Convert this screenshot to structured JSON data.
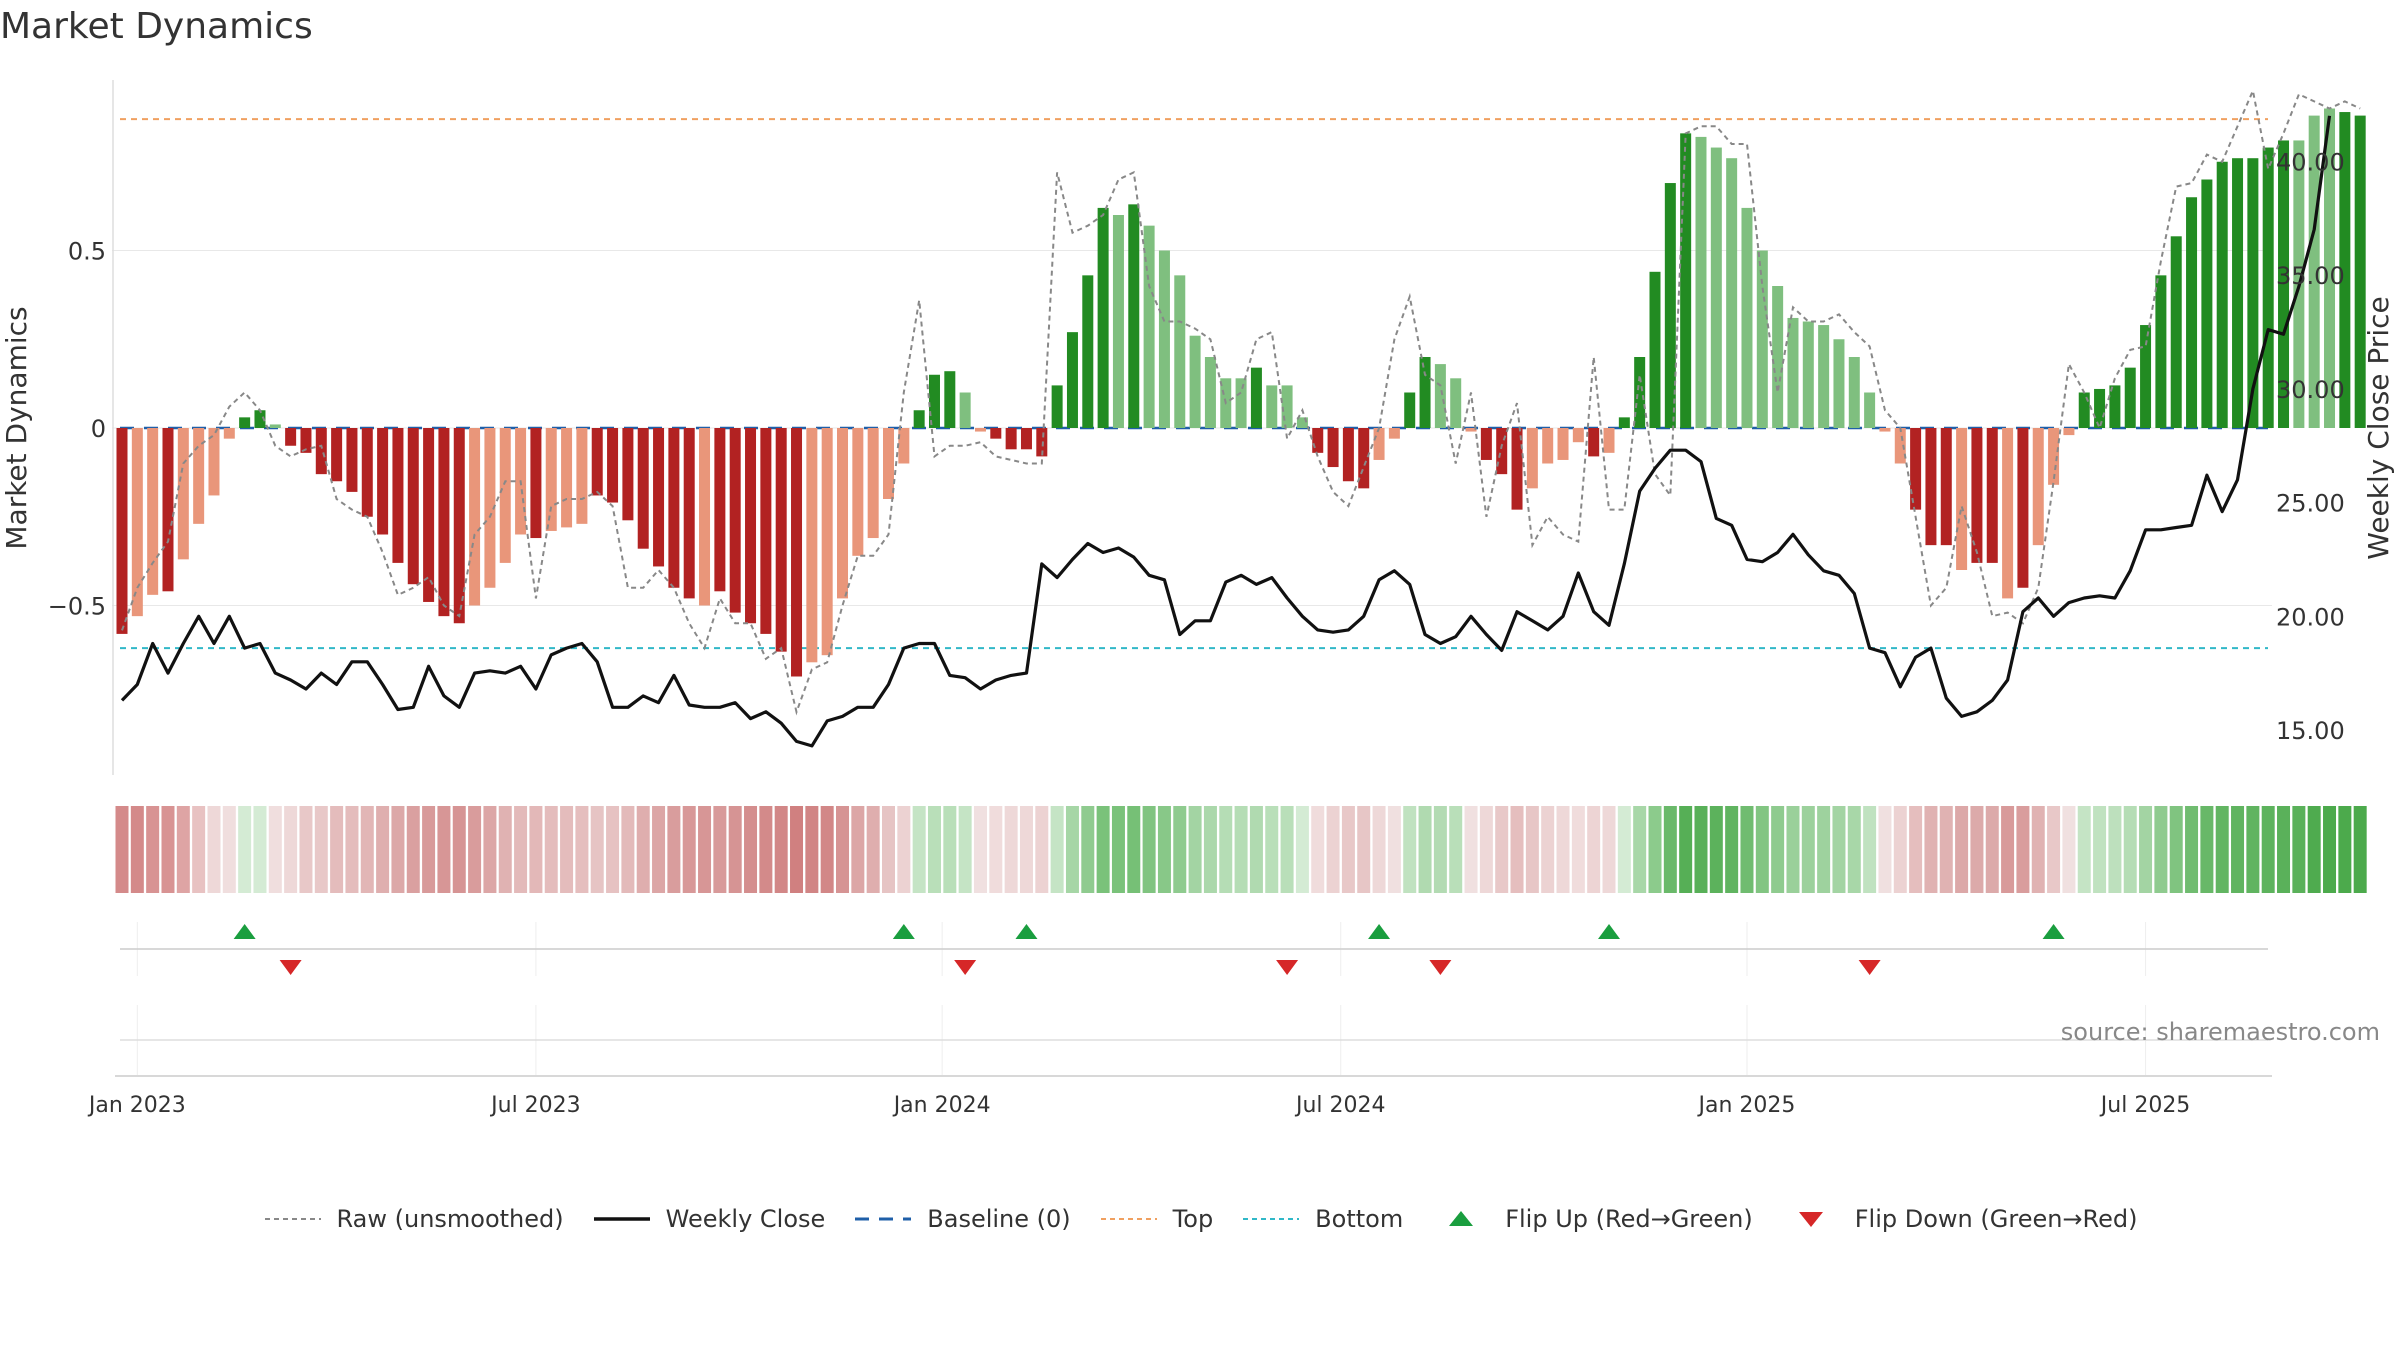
{
  "page": {
    "title": "Market Dynamics",
    "source": "source: sharemaestro.com"
  },
  "chart_data": {
    "type": "bar",
    "title": "Market Dynamics",
    "ylabel": "Market Dynamics",
    "y2label": "Weekly Close Price",
    "ylim": [
      -0.97,
      0.97
    ],
    "y2lim": [
      12.0,
      44.0
    ],
    "yticks": [
      -0.5,
      0,
      0.5
    ],
    "yticklabels": [
      "−0.5",
      "0",
      "0.5"
    ],
    "y2ticks": [
      15,
      20,
      25,
      30,
      35,
      40
    ],
    "y2ticklabels": [
      "15.00",
      "20.00",
      "25.00",
      "30.00",
      "35.00",
      "40.00"
    ],
    "xticks": [
      {
        "label": "Jan 2023",
        "week": 1
      },
      {
        "label": "Jul 2023",
        "week": 27
      },
      {
        "label": "Jan 2024",
        "week": 53.5
      },
      {
        "label": "Jul 2024",
        "week": 79.5
      },
      {
        "label": "Jan 2025",
        "week": 106
      },
      {
        "label": "Jul 2025",
        "week": 132
      }
    ],
    "reference_lines": {
      "top": 0.87,
      "bottom": -0.62,
      "baseline": 0
    },
    "grid": true,
    "legend_position": "bottom-center",
    "colors": {
      "red_strong": "#b22222",
      "red_light": "#e9967a",
      "green_strong": "#228b22",
      "green_light": "#7fbf7f",
      "raw": "#888888",
      "close": "#111111",
      "baseline": "#1f5fa8",
      "top": "#f0a060",
      "bottom": "#30b8c8",
      "flip_up": "#1a9e3f",
      "flip_down": "#d62728"
    },
    "bars": [
      -0.58,
      -0.53,
      -0.47,
      -0.46,
      -0.37,
      -0.27,
      -0.19,
      -0.03,
      0.03,
      0.05,
      0.01,
      -0.05,
      -0.07,
      -0.13,
      -0.15,
      -0.18,
      -0.25,
      -0.3,
      -0.38,
      -0.44,
      -0.49,
      -0.53,
      -0.55,
      -0.5,
      -0.45,
      -0.38,
      -0.3,
      -0.31,
      -0.29,
      -0.28,
      -0.27,
      -0.19,
      -0.21,
      -0.26,
      -0.34,
      -0.39,
      -0.45,
      -0.48,
      -0.5,
      -0.46,
      -0.52,
      -0.55,
      -0.58,
      -0.63,
      -0.7,
      -0.66,
      -0.64,
      -0.48,
      -0.36,
      -0.31,
      -0.2,
      -0.1,
      0.05,
      0.15,
      0.16,
      0.1,
      -0.01,
      -0.03,
      -0.06,
      -0.06,
      -0.08,
      0.12,
      0.27,
      0.43,
      0.62,
      0.6,
      0.63,
      0.57,
      0.5,
      0.43,
      0.26,
      0.2,
      0.14,
      0.14,
      0.17,
      0.12,
      0.12,
      0.03,
      -0.07,
      -0.11,
      -0.15,
      -0.17,
      -0.09,
      -0.03,
      0.1,
      0.2,
      0.18,
      0.14,
      -0.01,
      -0.09,
      -0.13,
      -0.23,
      -0.17,
      -0.1,
      -0.09,
      -0.04,
      -0.08,
      -0.07,
      0.03,
      0.2,
      0.44,
      0.69,
      0.83,
      0.82,
      0.79,
      0.76,
      0.62,
      0.5,
      0.4,
      0.31,
      0.3,
      0.29,
      0.25,
      0.2,
      0.1,
      -0.01,
      -0.1,
      -0.23,
      -0.33,
      -0.33,
      -0.4,
      -0.38,
      -0.38,
      -0.48,
      -0.45,
      -0.33,
      -0.16,
      -0.02,
      0.1,
      0.11,
      0.12,
      0.17,
      0.29,
      0.43,
      0.54,
      0.65,
      0.7,
      0.75,
      0.76,
      0.76,
      0.79,
      0.81,
      0.81,
      0.88,
      0.9,
      0.89,
      0.88
    ],
    "bar_shades": [
      "s",
      "l",
      "l",
      "s",
      "l",
      "l",
      "l",
      "l",
      "s",
      "s",
      "l",
      "s",
      "s",
      "s",
      "s",
      "s",
      "s",
      "s",
      "s",
      "s",
      "s",
      "s",
      "s",
      "l",
      "l",
      "l",
      "l",
      "s",
      "l",
      "l",
      "l",
      "s",
      "s",
      "s",
      "s",
      "s",
      "s",
      "s",
      "l",
      "s",
      "s",
      "s",
      "s",
      "s",
      "s",
      "l",
      "l",
      "l",
      "l",
      "l",
      "l",
      "l",
      "s",
      "s",
      "s",
      "l",
      "l",
      "s",
      "s",
      "s",
      "s",
      "s",
      "s",
      "s",
      "s",
      "l",
      "s",
      "l",
      "l",
      "l",
      "l",
      "l",
      "l",
      "l",
      "s",
      "l",
      "l",
      "l",
      "s",
      "s",
      "s",
      "s",
      "l",
      "l",
      "s",
      "s",
      "l",
      "l",
      "l",
      "s",
      "s",
      "s",
      "l",
      "l",
      "l",
      "l",
      "s",
      "l",
      "s",
      "s",
      "s",
      "s",
      "s",
      "l",
      "l",
      "l",
      "l",
      "l",
      "l",
      "l",
      "l",
      "l",
      "l",
      "l",
      "l",
      "l",
      "l",
      "s",
      "s",
      "s",
      "l",
      "s",
      "s",
      "l",
      "s",
      "l",
      "l",
      "l",
      "s",
      "s",
      "s",
      "s",
      "s",
      "s",
      "s",
      "s",
      "s",
      "s",
      "s",
      "s",
      "s",
      "s",
      "l",
      "l",
      "l"
    ],
    "raw": [
      -0.57,
      -0.45,
      -0.38,
      -0.32,
      -0.1,
      -0.05,
      -0.02,
      0.06,
      0.1,
      0.05,
      -0.05,
      -0.08,
      -0.06,
      -0.05,
      -0.2,
      -0.23,
      -0.25,
      -0.35,
      -0.47,
      -0.45,
      -0.42,
      -0.5,
      -0.53,
      -0.3,
      -0.25,
      -0.15,
      -0.15,
      -0.48,
      -0.22,
      -0.2,
      -0.2,
      -0.18,
      -0.22,
      -0.45,
      -0.45,
      -0.4,
      -0.45,
      -0.55,
      -0.62,
      -0.48,
      -0.55,
      -0.55,
      -0.65,
      -0.62,
      -0.8,
      -0.68,
      -0.66,
      -0.5,
      -0.36,
      -0.36,
      -0.3,
      0.1,
      0.36,
      -0.08,
      -0.05,
      -0.05,
      -0.04,
      -0.08,
      -0.09,
      -0.1,
      -0.1,
      0.72,
      0.55,
      0.57,
      0.6,
      0.7,
      0.72,
      0.4,
      0.3,
      0.3,
      0.28,
      0.25,
      0.07,
      0.1,
      0.25,
      0.27,
      -0.03,
      0.05,
      -0.08,
      -0.18,
      -0.22,
      -0.11,
      0.0,
      0.25,
      0.37,
      0.15,
      0.12,
      -0.1,
      0.1,
      -0.25,
      -0.05,
      0.07,
      -0.33,
      -0.25,
      -0.3,
      -0.32,
      0.2,
      -0.23,
      -0.23,
      0.15,
      -0.13,
      -0.19,
      0.83,
      0.85,
      0.85,
      0.8,
      0.8,
      0.4,
      0.1,
      0.34,
      0.3,
      0.3,
      0.32,
      0.27,
      0.23,
      0.05,
      0.0,
      -0.25,
      -0.5,
      -0.45,
      -0.22,
      -0.35,
      -0.53,
      -0.52,
      -0.55,
      -0.45,
      -0.15,
      0.18,
      0.1,
      0.0,
      0.14,
      0.22,
      0.23,
      0.47,
      0.68,
      0.69,
      0.77,
      0.75,
      0.85,
      0.95,
      0.73,
      0.83,
      0.94,
      0.92,
      0.9,
      0.92,
      0.9
    ],
    "close": [
      16.3,
      17.0,
      18.8,
      17.5,
      18.8,
      20.0,
      18.8,
      20.0,
      18.6,
      18.8,
      17.5,
      17.2,
      16.8,
      17.5,
      17.0,
      18.0,
      18.0,
      17.0,
      15.9,
      16.0,
      17.8,
      16.5,
      16.0,
      17.5,
      17.6,
      17.5,
      17.8,
      16.8,
      18.3,
      18.6,
      18.8,
      18.0,
      16.0,
      16.0,
      16.5,
      16.2,
      17.4,
      16.1,
      16.0,
      16.0,
      16.2,
      15.5,
      15.8,
      15.3,
      14.5,
      14.3,
      15.4,
      15.6,
      16.0,
      16.0,
      17.0,
      18.6,
      18.8,
      18.8,
      17.4,
      17.3,
      16.8,
      17.2,
      17.4,
      17.5,
      22.3,
      21.7,
      22.5,
      23.2,
      22.8,
      23.0,
      22.6,
      21.8,
      21.6,
      19.2,
      19.8,
      19.8,
      21.5,
      21.8,
      21.4,
      21.7,
      20.8,
      20.0,
      19.4,
      19.3,
      19.4,
      20.0,
      21.6,
      22.0,
      21.4,
      19.2,
      18.8,
      19.1,
      20.0,
      19.2,
      18.5,
      20.2,
      19.8,
      19.4,
      20.0,
      21.9,
      20.2,
      19.6,
      22.3,
      25.5,
      26.5,
      27.3,
      27.3,
      26.8,
      24.3,
      24.0,
      22.5,
      22.4,
      22.8,
      23.6,
      22.7,
      22.0,
      21.8,
      21.0,
      18.6,
      18.4,
      16.9,
      18.2,
      18.6,
      16.4,
      15.6,
      15.8,
      16.3,
      17.2,
      20.2,
      20.8,
      20.0,
      20.6,
      20.8,
      20.9,
      20.8,
      22.0,
      23.8,
      23.8,
      23.9,
      24.0,
      26.2,
      24.6,
      26.0,
      30.0,
      32.6,
      32.4,
      34.5,
      37.0,
      42.0
    ]
  },
  "strip": {
    "colors": [
      "#d48a8a",
      "#d48a8a",
      "#d89393",
      "#d89393",
      "#dea4a4",
      "#e8c2c2",
      "#eed8d8",
      "#f0dede",
      "#d4ebd4",
      "#d4ebd4",
      "#f0dede",
      "#eed8d8",
      "#e8c8c8",
      "#e8c8c8",
      "#e4bcbc",
      "#e4bcbc",
      "#e2b6b6",
      "#dfafaf",
      "#dca8a8",
      "#daa0a0",
      "#d89a9a",
      "#d79696",
      "#d69494",
      "#d99c9c",
      "#dca6a6",
      "#e0b2b2",
      "#e3baba",
      "#e3b8b8",
      "#e4bcbc",
      "#e4bcbc",
      "#e5bebe",
      "#e6c4c4",
      "#e6c2c2",
      "#e3baba",
      "#dfaeae",
      "#dca6a6",
      "#d99d9d",
      "#d89898",
      "#d79696",
      "#d89a9a",
      "#d69494",
      "#d48e8e",
      "#d38a8a",
      "#d28787",
      "#d08080",
      "#d18585",
      "#d28787",
      "#d69494",
      "#dca6a6",
      "#dfaeae",
      "#e6c4c4",
      "#ecd2d2",
      "#c5e4c5",
      "#b9dfb9",
      "#b9dfb9",
      "#c5e4c5",
      "#f0e0e0",
      "#f0dcdc",
      "#eed8d8",
      "#eed8d8",
      "#ecd2d2",
      "#c5e4c5",
      "#a6d6a6",
      "#8fcb8f",
      "#7ac27a",
      "#7ac27a",
      "#76c076",
      "#80c480",
      "#88c888",
      "#8fcb8f",
      "#a3d4a3",
      "#abd8ab",
      "#b5ddb5",
      "#b5ddb5",
      "#b0dab0",
      "#b9dfb9",
      "#b9dfb9",
      "#d4ebd4",
      "#f0dcdc",
      "#ecd2d2",
      "#e8c8c8",
      "#e7c6c6",
      "#eed8d8",
      "#f0e0e0",
      "#c0e2c0",
      "#b0dab0",
      "#b3dbb3",
      "#b9dfb9",
      "#f0e0e0",
      "#eed8d8",
      "#e8c8c8",
      "#e5bebe",
      "#e7c6c6",
      "#ecd2d2",
      "#eed8d8",
      "#f0dcdc",
      "#edd4d4",
      "#eed8d8",
      "#d4ebd4",
      "#a8d7a8",
      "#8ccb8c",
      "#6ab96a",
      "#56af56",
      "#58b058",
      "#5cb25c",
      "#60b460",
      "#70bc70",
      "#82c582",
      "#8fcb8f",
      "#9ad09a",
      "#9cd19c",
      "#9ed29e",
      "#a3d4a3",
      "#a8d7a8",
      "#c0e2c0",
      "#f0e0e0",
      "#ecd2d2",
      "#e5bebe",
      "#e0b2b2",
      "#e0b2b2",
      "#dca8a8",
      "#dcaaaa",
      "#dcaaaa",
      "#d89a9a",
      "#d99d9d",
      "#e0b2b2",
      "#e8c8c8",
      "#f0e0e0",
      "#c5e4c5",
      "#c0e2c0",
      "#bde0bd",
      "#b5ddb5",
      "#a3d4a3",
      "#8fcb8f",
      "#80c480",
      "#70bc70",
      "#68b868",
      "#62b562",
      "#60b460",
      "#60b460",
      "#5db35d",
      "#5ab15a",
      "#5ab15a",
      "#4fab4f",
      "#4caa4c",
      "#4caa4c",
      "#4caa4c"
    ]
  },
  "flips": {
    "up": [
      8,
      51,
      59,
      82,
      97,
      126
    ],
    "down": [
      11,
      55,
      76,
      86,
      114
    ]
  },
  "legend": [
    {
      "key": "raw",
      "label": "Raw (unsmoothed)"
    },
    {
      "key": "close",
      "label": "Weekly Close"
    },
    {
      "key": "baseline",
      "label": "Baseline (0)"
    },
    {
      "key": "top",
      "label": "Top"
    },
    {
      "key": "bottom",
      "label": "Bottom"
    },
    {
      "key": "flip_up",
      "label": "Flip Up (Red→Green)"
    },
    {
      "key": "flip_down",
      "label": "Flip Down (Green→Red)"
    }
  ]
}
